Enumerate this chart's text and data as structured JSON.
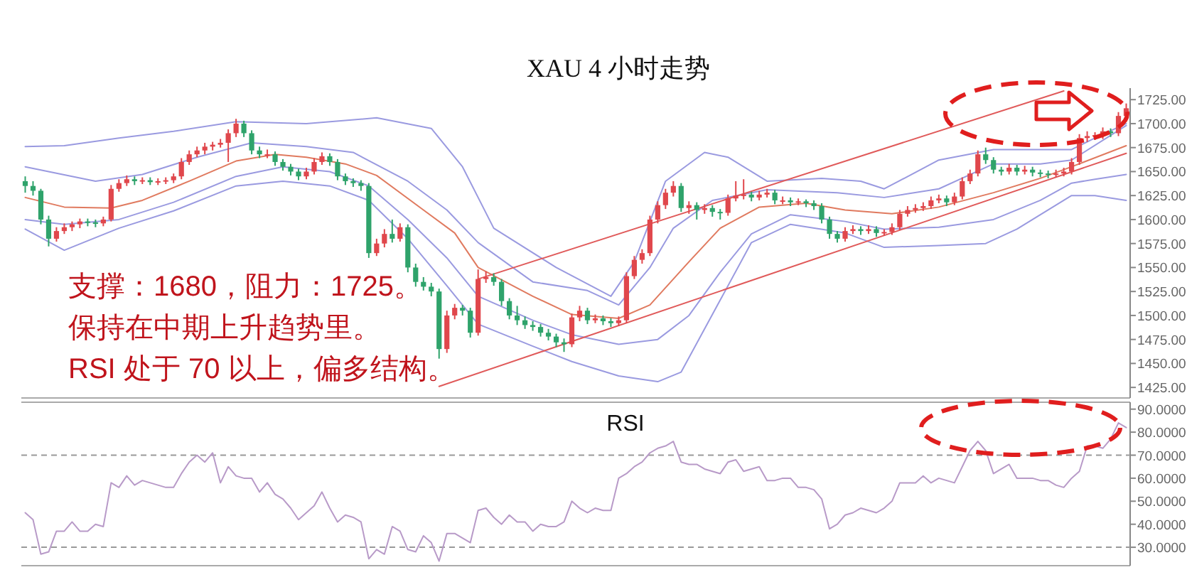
{
  "chart_data": [
    {
      "type": "candlestick",
      "title": "XAU 4 小时走势",
      "tick_labels": "y",
      "annotations": [
        "支撑：1680，阻力：1725。",
        "保持在中期上升趋势里。",
        "RSI 处于 70 以上，偏多结构。"
      ],
      "ylim": [
        1414,
        1737
      ],
      "yticks": [
        {
          "value": 1425,
          "label": "1425.00"
        },
        {
          "value": 1450,
          "label": "1450.00"
        },
        {
          "value": 1475,
          "label": "1475.00"
        },
        {
          "value": 1500,
          "label": "1500.00"
        },
        {
          "value": 1525,
          "label": "1525.00"
        },
        {
          "value": 1550,
          "label": "1550.00"
        },
        {
          "value": 1575,
          "label": "1575.00"
        },
        {
          "value": 1600,
          "label": "1600.00"
        },
        {
          "value": 1625,
          "label": "1625.00"
        },
        {
          "value": 1650,
          "label": "1650.00"
        },
        {
          "value": 1675,
          "label": "1675.00"
        },
        {
          "value": 1700,
          "label": "1700.00"
        },
        {
          "value": 1725,
          "label": "1725.00"
        }
      ],
      "categories": [
        null,
        null,
        null,
        null,
        null,
        null,
        null,
        null,
        null,
        null,
        null,
        null,
        null,
        null,
        null,
        null,
        null,
        null,
        null,
        null,
        null,
        null,
        null,
        null,
        null,
        null,
        null,
        null,
        null,
        null,
        null,
        null,
        null,
        null,
        null,
        null,
        null,
        null,
        null,
        null,
        null,
        null,
        null,
        null,
        null,
        null,
        null,
        null,
        null,
        null,
        null,
        null,
        null,
        null,
        null,
        null,
        null,
        null,
        null,
        null,
        null,
        null,
        null,
        null,
        null,
        null,
        null,
        null,
        null,
        null,
        null,
        null,
        null,
        null,
        null,
        null,
        null,
        null,
        null,
        null,
        null,
        null,
        null,
        null,
        null,
        null,
        null,
        null,
        null,
        null,
        null,
        null,
        null,
        null,
        null,
        null,
        null,
        null,
        null,
        null,
        null,
        null,
        null,
        null,
        null,
        null,
        null,
        null,
        null,
        null,
        null,
        null,
        null,
        null,
        null,
        null,
        null,
        null,
        null,
        null,
        null,
        null,
        null,
        null,
        null,
        null,
        null,
        null,
        null,
        null,
        null,
        null,
        null,
        null,
        null,
        null,
        null,
        null,
        null,
        null,
        null,
        null
      ],
      "ohlc": [
        [
          1640,
          1645,
          1628,
          1635
        ],
        [
          1635,
          1640,
          1625,
          1630
        ],
        [
          1630,
          1632,
          1595,
          1600
        ],
        [
          1600,
          1604,
          1572,
          1580
        ],
        [
          1580,
          1592,
          1577,
          1588
        ],
        [
          1588,
          1596,
          1585,
          1592
        ],
        [
          1592,
          1598,
          1588,
          1595
        ],
        [
          1595,
          1601,
          1591,
          1598
        ],
        [
          1598,
          1601,
          1593,
          1597
        ],
        [
          1597,
          1600,
          1592,
          1596
        ],
        [
          1596,
          1603,
          1593,
          1600
        ],
        [
          1600,
          1636,
          1598,
          1632
        ],
        [
          1632,
          1642,
          1629,
          1638
        ],
        [
          1638,
          1646,
          1635,
          1642
        ],
        [
          1642,
          1645,
          1636,
          1640
        ],
        [
          1640,
          1644,
          1637,
          1641
        ],
        [
          1641,
          1644,
          1636,
          1639
        ],
        [
          1639,
          1643,
          1636,
          1640
        ],
        [
          1640,
          1644,
          1637,
          1641
        ],
        [
          1641,
          1648,
          1638,
          1645
        ],
        [
          1645,
          1664,
          1642,
          1660
        ],
        [
          1660,
          1672,
          1657,
          1668
        ],
        [
          1668,
          1676,
          1665,
          1672
        ],
        [
          1672,
          1680,
          1668,
          1676
        ],
        [
          1676,
          1681,
          1672,
          1678
        ],
        [
          1678,
          1684,
          1675,
          1680
        ],
        [
          1680,
          1694,
          1660,
          1690
        ],
        [
          1690,
          1705,
          1686,
          1700
        ],
        [
          1700,
          1703,
          1686,
          1690
        ],
        [
          1690,
          1693,
          1668,
          1672
        ],
        [
          1672,
          1676,
          1664,
          1668
        ],
        [
          1668,
          1673,
          1664,
          1668
        ],
        [
          1668,
          1671,
          1656,
          1660
        ],
        [
          1660,
          1663,
          1651,
          1655
        ],
        [
          1655,
          1658,
          1646,
          1650
        ],
        [
          1650,
          1653,
          1641,
          1645
        ],
        [
          1645,
          1654,
          1642,
          1650
        ],
        [
          1650,
          1664,
          1647,
          1660
        ],
        [
          1660,
          1670,
          1657,
          1666
        ],
        [
          1666,
          1669,
          1656,
          1660
        ],
        [
          1660,
          1663,
          1641,
          1645
        ],
        [
          1645,
          1648,
          1636,
          1640
        ],
        [
          1640,
          1643,
          1634,
          1638
        ],
        [
          1638,
          1641,
          1630,
          1635
        ],
        [
          1635,
          1638,
          1560,
          1565
        ],
        [
          1565,
          1580,
          1562,
          1575
        ],
        [
          1575,
          1590,
          1571,
          1585
        ],
        [
          1585,
          1600,
          1576,
          1580
        ],
        [
          1580,
          1596,
          1577,
          1592
        ],
        [
          1592,
          1595,
          1545,
          1550
        ],
        [
          1550,
          1554,
          1530,
          1535
        ],
        [
          1535,
          1540,
          1526,
          1530
        ],
        [
          1530,
          1534,
          1520,
          1525
        ],
        [
          1525,
          1528,
          1455,
          1465
        ],
        [
          1465,
          1505,
          1461,
          1500
        ],
        [
          1500,
          1512,
          1496,
          1508
        ],
        [
          1508,
          1511,
          1500,
          1505
        ],
        [
          1505,
          1508,
          1477,
          1482
        ],
        [
          1482,
          1548,
          1479,
          1538
        ],
        [
          1538,
          1546,
          1534,
          1540
        ],
        [
          1540,
          1544,
          1531,
          1535
        ],
        [
          1535,
          1538,
          1510,
          1515
        ],
        [
          1515,
          1518,
          1496,
          1500
        ],
        [
          1500,
          1510,
          1490,
          1495
        ],
        [
          1495,
          1499,
          1486,
          1490
        ],
        [
          1490,
          1494,
          1484,
          1488
        ],
        [
          1488,
          1491,
          1478,
          1482
        ],
        [
          1482,
          1486,
          1474,
          1478
        ],
        [
          1478,
          1481,
          1467,
          1472
        ],
        [
          1472,
          1476,
          1462,
          1470
        ],
        [
          1470,
          1502,
          1467,
          1498
        ],
        [
          1498,
          1510,
          1494,
          1505
        ],
        [
          1505,
          1508,
          1491,
          1495
        ],
        [
          1495,
          1501,
          1492,
          1497
        ],
        [
          1497,
          1500,
          1490,
          1494
        ],
        [
          1494,
          1497,
          1488,
          1492
        ],
        [
          1492,
          1499,
          1489,
          1495
        ],
        [
          1495,
          1545,
          1492,
          1541
        ],
        [
          1541,
          1562,
          1538,
          1558
        ],
        [
          1558,
          1569,
          1554,
          1565
        ],
        [
          1565,
          1604,
          1562,
          1600
        ],
        [
          1600,
          1619,
          1596,
          1615
        ],
        [
          1615,
          1632,
          1611,
          1628
        ],
        [
          1628,
          1640,
          1624,
          1635
        ],
        [
          1635,
          1638,
          1608,
          1612
        ],
        [
          1612,
          1619,
          1606,
          1615
        ],
        [
          1615,
          1618,
          1600,
          1610
        ],
        [
          1610,
          1616,
          1606,
          1612
        ],
        [
          1612,
          1615,
          1603,
          1608
        ],
        [
          1608,
          1611,
          1600,
          1607
        ],
        [
          1607,
          1626,
          1604,
          1622
        ],
        [
          1622,
          1640,
          1619,
          1625
        ],
        [
          1625,
          1642,
          1621,
          1626
        ],
        [
          1626,
          1629,
          1619,
          1623
        ],
        [
          1623,
          1630,
          1620,
          1626
        ],
        [
          1626,
          1632,
          1623,
          1628
        ],
        [
          1628,
          1631,
          1616,
          1620
        ],
        [
          1620,
          1624,
          1616,
          1620
        ],
        [
          1620,
          1623,
          1614,
          1618
        ],
        [
          1618,
          1622,
          1615,
          1619
        ],
        [
          1619,
          1621,
          1613,
          1617
        ],
        [
          1617,
          1620,
          1610,
          1614
        ],
        [
          1614,
          1617,
          1596,
          1600
        ],
        [
          1600,
          1603,
          1580,
          1585
        ],
        [
          1585,
          1588,
          1576,
          1580
        ],
        [
          1580,
          1592,
          1577,
          1588
        ],
        [
          1588,
          1594,
          1585,
          1590
        ],
        [
          1590,
          1593,
          1584,
          1588
        ],
        [
          1588,
          1594,
          1585,
          1590
        ],
        [
          1590,
          1593,
          1582,
          1586
        ],
        [
          1586,
          1590,
          1583,
          1587
        ],
        [
          1587,
          1596,
          1584,
          1592
        ],
        [
          1592,
          1610,
          1589,
          1606
        ],
        [
          1606,
          1614,
          1603,
          1610
        ],
        [
          1610,
          1616,
          1607,
          1612
        ],
        [
          1612,
          1618,
          1609,
          1614
        ],
        [
          1614,
          1624,
          1611,
          1620
        ],
        [
          1620,
          1626,
          1617,
          1622
        ],
        [
          1622,
          1625,
          1614,
          1618
        ],
        [
          1618,
          1628,
          1615,
          1624
        ],
        [
          1624,
          1644,
          1621,
          1640
        ],
        [
          1640,
          1652,
          1637,
          1648
        ],
        [
          1648,
          1672,
          1645,
          1668
        ],
        [
          1668,
          1675,
          1658,
          1662
        ],
        [
          1662,
          1665,
          1648,
          1652
        ],
        [
          1652,
          1655,
          1646,
          1650
        ],
        [
          1650,
          1658,
          1647,
          1654
        ],
        [
          1654,
          1657,
          1646,
          1650
        ],
        [
          1650,
          1656,
          1647,
          1652
        ],
        [
          1652,
          1655,
          1645,
          1649
        ],
        [
          1649,
          1652,
          1644,
          1648
        ],
        [
          1648,
          1651,
          1643,
          1647
        ],
        [
          1647,
          1652,
          1644,
          1648
        ],
        [
          1648,
          1654,
          1645,
          1650
        ],
        [
          1650,
          1664,
          1647,
          1660
        ],
        [
          1660,
          1689,
          1657,
          1685
        ],
        [
          1685,
          1692,
          1681,
          1687
        ],
        [
          1687,
          1691,
          1683,
          1688
        ],
        [
          1688,
          1696,
          1684,
          1692
        ],
        [
          1692,
          1695,
          1686,
          1690
        ],
        [
          1690,
          1712,
          1687,
          1708
        ],
        [
          1708,
          1721,
          1704,
          1716
        ]
      ],
      "series": [
        {
          "type": "line",
          "color": "#9a9ae0",
          "values": [
            1676,
            null,
            null,
            null,
            null,
            1677,
            null,
            null,
            null,
            null,
            null,
            null,
            1685,
            null,
            null,
            null,
            null,
            null,
            null,
            1692,
            null,
            null,
            null,
            null,
            null,
            null,
            null,
            1702,
            null,
            null,
            null,
            null,
            null,
            null,
            null,
            null,
            1700,
            null,
            null,
            null,
            null,
            null,
            null,
            null,
            null,
            1706,
            null,
            null,
            null,
            null,
            null,
            null,
            1695,
            null,
            null,
            null,
            1655,
            null,
            null,
            null,
            1591,
            null,
            null,
            null,
            null,
            null,
            null,
            null,
            1550,
            null,
            null,
            null,
            null,
            null,
            null,
            1520,
            null,
            null,
            1556,
            null,
            null,
            null,
            1640,
            null,
            null,
            null,
            null,
            1670,
            null,
            null,
            1665,
            null,
            null,
            null,
            null,
            1640,
            null,
            null,
            null,
            null,
            null,
            null,
            1643,
            null,
            null,
            null,
            null,
            1640,
            null,
            null,
            1632,
            null,
            null,
            null,
            null,
            null,
            null,
            1662,
            null,
            null,
            null,
            null,
            null,
            null,
            1673,
            null,
            null,
            null,
            null,
            null,
            null,
            null,
            null,
            null,
            1673,
            null,
            null,
            1685,
            null,
            null,
            null,
            1700
          ]
        },
        {
          "type": "line",
          "color": "#9a9ae0",
          "values": [
            1655,
            null,
            null,
            null,
            null,
            null,
            null,
            null,
            null,
            1640,
            null,
            null,
            null,
            null,
            null,
            1647,
            null,
            null,
            null,
            null,
            null,
            null,
            1665,
            null,
            null,
            null,
            null,
            null,
            null,
            1680,
            null,
            null,
            null,
            null,
            null,
            null,
            1676,
            null,
            null,
            null,
            null,
            null,
            1670,
            null,
            null,
            null,
            null,
            null,
            null,
            1640,
            null,
            null,
            null,
            null,
            1610,
            null,
            null,
            null,
            1576,
            null,
            null,
            null,
            null,
            null,
            null,
            1535,
            null,
            null,
            null,
            null,
            null,
            null,
            1526,
            null,
            null,
            null,
            1511,
            null,
            null,
            null,
            1550,
            null,
            null,
            1591,
            null,
            null,
            null,
            null,
            1620,
            null,
            null,
            null,
            null,
            null,
            null,
            1631,
            null,
            null,
            null,
            null,
            null,
            null,
            null,
            null,
            1628,
            null,
            null,
            null,
            null,
            null,
            1623,
            null,
            null,
            null,
            null,
            null,
            null,
            1632,
            null,
            null,
            null,
            null,
            null,
            null,
            1658,
            null,
            null,
            null,
            null,
            null,
            1658,
            null,
            null,
            null,
            1662,
            null,
            null,
            null,
            null,
            null,
            null,
            1698
          ]
        },
        {
          "type": "line",
          "color": "#e07a5f",
          "values": [
            1623,
            null,
            null,
            null,
            null,
            1613,
            null,
            null,
            null,
            null,
            null,
            1612,
            null,
            null,
            null,
            1620,
            null,
            null,
            null,
            null,
            null,
            1640,
            null,
            null,
            null,
            null,
            null,
            1661,
            null,
            null,
            null,
            null,
            1668,
            null,
            null,
            null,
            1665,
            null,
            null,
            null,
            null,
            1658,
            null,
            null,
            null,
            1646,
            null,
            null,
            null,
            null,
            null,
            1610,
            null,
            null,
            null,
            1586,
            null,
            null,
            1550,
            null,
            null,
            null,
            null,
            null,
            null,
            1520,
            null,
            null,
            null,
            null,
            1501,
            null,
            null,
            null,
            null,
            null,
            1497,
            null,
            null,
            null,
            1511,
            null,
            null,
            null,
            null,
            1556,
            null,
            null,
            null,
            1591,
            null,
            null,
            null,
            null,
            1613,
            null,
            null,
            null,
            null,
            null,
            1617,
            null,
            null,
            null,
            null,
            1610,
            null,
            null,
            null,
            null,
            null,
            1606,
            null,
            null,
            null,
            null,
            null,
            1613,
            null,
            null,
            null,
            null,
            null,
            null,
            1628,
            null,
            null,
            null,
            null,
            null,
            1643,
            null,
            null,
            null,
            1655,
            null,
            null,
            null,
            null,
            null,
            null,
            1677
          ]
        },
        {
          "type": "line",
          "color": "#9a9ae0",
          "values": [
            1600,
            null,
            null,
            null,
            null,
            1595,
            null,
            null,
            null,
            null,
            null,
            null,
            1600,
            null,
            null,
            null,
            null,
            null,
            null,
            1618,
            null,
            null,
            null,
            null,
            null,
            null,
            null,
            1645,
            null,
            null,
            null,
            null,
            null,
            1655,
            null,
            null,
            null,
            null,
            null,
            1650,
            null,
            null,
            null,
            null,
            1635,
            null,
            null,
            null,
            null,
            1600,
            null,
            null,
            null,
            null,
            1560,
            null,
            null,
            null,
            1520,
            null,
            null,
            null,
            null,
            null,
            null,
            1495,
            null,
            null,
            null,
            null,
            1480,
            null,
            null,
            null,
            null,
            null,
            1470,
            null,
            null,
            null,
            null,
            1475,
            null,
            null,
            null,
            1500,
            null,
            null,
            null,
            1545,
            null,
            null,
            null,
            1585,
            null,
            null,
            null,
            null,
            1605,
            null,
            null,
            null,
            null,
            null,
            null,
            1598,
            null,
            null,
            null,
            null,
            1590,
            null,
            null,
            null,
            null,
            null,
            null,
            1592,
            null,
            null,
            null,
            null,
            null,
            null,
            1600,
            null,
            null,
            null,
            null,
            null,
            1620,
            null,
            null,
            null,
            1638,
            null,
            null,
            1642,
            null,
            null,
            null,
            1647
          ]
        },
        {
          "type": "line",
          "color": "#9a9ae0",
          "values": [
            1590,
            null,
            null,
            null,
            null,
            1568,
            null,
            null,
            null,
            null,
            null,
            null,
            1591,
            null,
            null,
            null,
            null,
            null,
            null,
            1609,
            null,
            null,
            null,
            null,
            null,
            null,
            null,
            1635,
            null,
            null,
            null,
            null,
            null,
            1640,
            null,
            null,
            null,
            null,
            null,
            1635,
            null,
            null,
            null,
            null,
            1620,
            null,
            null,
            null,
            null,
            1580,
            null,
            null,
            null,
            null,
            1531,
            null,
            null,
            null,
            1491,
            null,
            null,
            null,
            null,
            null,
            null,
            1468,
            null,
            null,
            null,
            null,
            1452,
            null,
            null,
            null,
            null,
            null,
            1437,
            null,
            null,
            null,
            null,
            1431,
            null,
            null,
            1441,
            null,
            null,
            null,
            null,
            1516,
            null,
            null,
            null,
            1576,
            null,
            null,
            null,
            null,
            1595,
            null,
            null,
            null,
            null,
            null,
            null,
            1586,
            null,
            null,
            null,
            null,
            1571,
            null,
            null,
            null,
            null,
            null,
            null,
            1573,
            null,
            null,
            null,
            null,
            null,
            1575,
            null,
            null,
            null,
            1590,
            null,
            null,
            null,
            null,
            null,
            null,
            1625,
            null,
            null,
            1625,
            null,
            null,
            null,
            1620
          ]
        },
        {
          "type": "line",
          "color": "#e05a5a",
          "values": [
            null,
            null,
            null,
            null,
            null,
            null,
            null,
            null,
            null,
            null,
            null,
            null,
            null,
            null,
            null,
            null,
            null,
            null,
            null,
            null,
            null,
            null,
            null,
            null,
            null,
            null,
            null,
            null,
            null,
            null,
            null,
            null,
            null,
            null,
            null,
            null,
            null,
            null,
            null,
            null,
            null,
            null,
            null,
            null,
            null,
            null,
            null,
            null,
            null,
            null,
            null,
            null,
            null,
            null,
            null,
            null,
            null,
            null,
            1538,
            null,
            null,
            null,
            null,
            null,
            null,
            null,
            null,
            null,
            null,
            null,
            null,
            null,
            null,
            null,
            null,
            null,
            null,
            null,
            null,
            null,
            null,
            null,
            null,
            null,
            null,
            null,
            null,
            null,
            null,
            null,
            null,
            null,
            null,
            null,
            null,
            null,
            null,
            null,
            null,
            null,
            null,
            null,
            null,
            null,
            null,
            null,
            null,
            null,
            null,
            null,
            null,
            null,
            null,
            null,
            null,
            null,
            null,
            null,
            null,
            null,
            null,
            null,
            null,
            null,
            null,
            null,
            null,
            null,
            null,
            null,
            null,
            null,
            null,
            1734,
            null,
            null,
            null,
            null,
            null,
            null,
            null,
            null
          ]
        },
        {
          "type": "line",
          "color": "#e05a5a",
          "values": [
            null,
            null,
            null,
            null,
            null,
            null,
            null,
            null,
            null,
            null,
            null,
            null,
            null,
            null,
            null,
            null,
            null,
            null,
            null,
            null,
            null,
            null,
            null,
            null,
            null,
            null,
            null,
            null,
            null,
            null,
            null,
            null,
            null,
            null,
            null,
            null,
            null,
            null,
            null,
            null,
            null,
            null,
            null,
            null,
            null,
            null,
            null,
            null,
            null,
            null,
            null,
            null,
            null,
            1426,
            null,
            null,
            null,
            null,
            null,
            null,
            null,
            null,
            null,
            null,
            null,
            null,
            null,
            null,
            null,
            null,
            null,
            null,
            null,
            null,
            null,
            null,
            null,
            null,
            null,
            null,
            null,
            null,
            null,
            null,
            null,
            null,
            null,
            null,
            null,
            null,
            null,
            null,
            null,
            null,
            null,
            null,
            null,
            null,
            null,
            null,
            null,
            null,
            null,
            null,
            null,
            null,
            null,
            null,
            null,
            null,
            null,
            null,
            null,
            null,
            null,
            null,
            null,
            null,
            null,
            null,
            null,
            null,
            null,
            null,
            null,
            null,
            null,
            null,
            null,
            null,
            null,
            null,
            null,
            null,
            null,
            null,
            null,
            null,
            null,
            null,
            null,
            1669
          ]
        }
      ]
    },
    {
      "type": "line",
      "title": "RSI",
      "tick_labels": "y",
      "ylim": [
        22,
        93
      ],
      "yticks": [
        {
          "value": 30,
          "label": "30.0000"
        },
        {
          "value": 40,
          "label": "40.0000"
        },
        {
          "value": 50,
          "label": "50.0000"
        },
        {
          "value": 60,
          "label": "60.0000"
        },
        {
          "value": 70,
          "label": "70.0000"
        },
        {
          "value": 80,
          "label": "80.0000"
        },
        {
          "value": 90,
          "label": "90.0000"
        }
      ],
      "ref_lines": [
        {
          "axis": "y",
          "value": 70,
          "color": "#999999",
          "line_style": "dashed"
        },
        {
          "axis": "y",
          "value": 30,
          "color": "#999999",
          "line_style": "dashed"
        }
      ],
      "categories": [
        null,
        null,
        null,
        null,
        null,
        null,
        null,
        null,
        null,
        null,
        null,
        null,
        null,
        null,
        null,
        null,
        null,
        null,
        null,
        null,
        null,
        null,
        null,
        null,
        null,
        null,
        null,
        null,
        null,
        null,
        null,
        null,
        null,
        null,
        null,
        null,
        null,
        null,
        null,
        null,
        null,
        null,
        null,
        null,
        null,
        null,
        null,
        null,
        null,
        null,
        null,
        null,
        null,
        null,
        null,
        null,
        null,
        null,
        null,
        null,
        null,
        null,
        null,
        null,
        null,
        null,
        null,
        null,
        null,
        null,
        null,
        null,
        null,
        null,
        null,
        null,
        null,
        null,
        null,
        null,
        null,
        null,
        null,
        null,
        null,
        null,
        null,
        null,
        null,
        null,
        null,
        null,
        null,
        null,
        null,
        null,
        null,
        null,
        null,
        null,
        null,
        null,
        null,
        null,
        null,
        null,
        null,
        null,
        null,
        null,
        null,
        null,
        null,
        null,
        null,
        null,
        null,
        null,
        null,
        null,
        null,
        null,
        null,
        null,
        null,
        null,
        null,
        null,
        null,
        null,
        null,
        null,
        null,
        null,
        null,
        null,
        null,
        null,
        null,
        null,
        null,
        null
      ],
      "series": [
        {
          "color": "#b89ac8",
          "values": [
            45,
            42,
            27,
            28,
            37,
            37,
            41,
            37,
            37,
            40,
            39,
            58,
            56,
            61,
            57,
            59,
            58,
            57,
            56,
            56,
            62,
            67,
            70,
            67,
            71,
            58,
            65,
            61,
            60,
            60,
            54,
            58,
            53,
            51,
            47,
            42,
            45,
            48,
            54,
            47,
            41,
            44,
            43,
            41,
            25,
            29,
            27,
            39,
            37,
            29,
            28,
            35,
            32,
            24,
            36,
            36,
            34,
            32,
            46,
            47,
            43,
            40,
            44,
            41,
            41,
            37,
            40,
            39,
            39,
            41,
            50,
            47,
            45,
            47,
            46,
            46,
            60,
            62,
            65,
            67,
            71,
            73,
            74,
            76,
            67,
            66,
            66,
            64,
            63,
            62,
            67,
            68,
            63,
            64,
            65,
            59,
            59,
            60,
            60,
            56,
            56,
            55,
            51,
            38,
            40,
            44,
            45,
            47,
            46,
            45,
            47,
            50,
            58,
            58,
            58,
            61,
            58,
            60,
            59,
            58,
            65,
            72,
            76,
            72,
            62,
            64,
            66,
            60,
            60,
            60,
            59,
            59,
            57,
            56,
            60,
            63,
            74,
            74,
            73,
            77,
            84,
            82
          ]
        }
      ]
    }
  ]
}
